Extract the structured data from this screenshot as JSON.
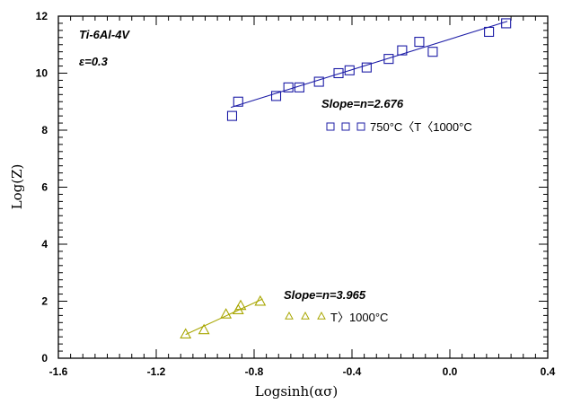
{
  "chart_data": {
    "type": "scatter",
    "xlabel": "Logsinh(ασ)",
    "ylabel": "Log(Z)",
    "xlim": [
      -1.6,
      0.4
    ],
    "ylim": [
      0,
      12
    ],
    "x_ticks": [
      "-1.6",
      "-1.2",
      "-0.8",
      "-0.4",
      "0.0",
      "0.4"
    ],
    "y_ticks": [
      "0",
      "2",
      "4",
      "6",
      "8",
      "10",
      "12"
    ],
    "annotations": {
      "alloy": "Ti-6Al-4V",
      "strain": "ε=0.3",
      "slope_blue": "Slope=n=2.676",
      "slope_yellow": "Slope=n=3.965"
    },
    "series": [
      {
        "name": "750°C<T<1000°C",
        "legend_text": "750°C〈T〈1000°C",
        "marker": "square",
        "color": "#1c1ca6",
        "points": [
          {
            "x": -0.89,
            "y": 8.5
          },
          {
            "x": -0.865,
            "y": 9.0
          },
          {
            "x": -0.71,
            "y": 9.2
          },
          {
            "x": -0.66,
            "y": 9.5
          },
          {
            "x": -0.615,
            "y": 9.5
          },
          {
            "x": -0.535,
            "y": 9.7
          },
          {
            "x": -0.455,
            "y": 10.0
          },
          {
            "x": -0.41,
            "y": 10.1
          },
          {
            "x": -0.34,
            "y": 10.2
          },
          {
            "x": -0.25,
            "y": 10.5
          },
          {
            "x": -0.195,
            "y": 10.8
          },
          {
            "x": -0.125,
            "y": 11.1
          },
          {
            "x": -0.07,
            "y": 10.75
          },
          {
            "x": 0.16,
            "y": 11.45
          },
          {
            "x": 0.23,
            "y": 11.75
          }
        ],
        "fit": {
          "x": [
            -0.895,
            0.235
          ],
          "y": [
            8.8,
            11.82
          ]
        }
      },
      {
        "name": "T>1000°C",
        "legend_text": "T〉1000°C",
        "marker": "triangle",
        "color": "#a8a600",
        "points": [
          {
            "x": -1.08,
            "y": 0.85
          },
          {
            "x": -1.005,
            "y": 1.0
          },
          {
            "x": -0.915,
            "y": 1.55
          },
          {
            "x": -0.865,
            "y": 1.7
          },
          {
            "x": -0.855,
            "y": 1.85
          },
          {
            "x": -0.775,
            "y": 2.0
          }
        ],
        "fit": {
          "x": [
            -1.08,
            -0.765
          ],
          "y": [
            0.83,
            2.08
          ]
        }
      }
    ]
  }
}
